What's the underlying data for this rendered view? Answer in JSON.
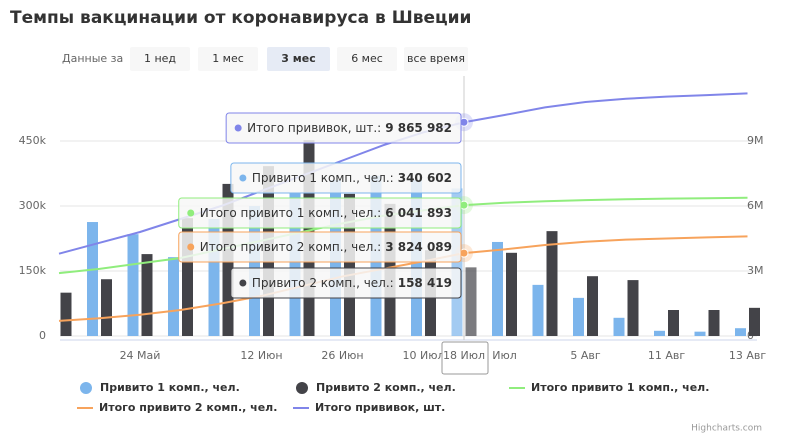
{
  "title": "Темпы вакцинации от коронавируса в Швеции",
  "range_selector": {
    "label": "Данные за",
    "buttons": [
      "1 нед",
      "1 мес",
      "3 мес",
      "6 мес",
      "все время"
    ],
    "selected": 2
  },
  "credits": "Highcharts.com",
  "chart_data": {
    "type": "combo",
    "categories": [
      null,
      null,
      "24 Май",
      null,
      null,
      "12 Июн",
      null,
      "26 Июн",
      null,
      "10 Июл",
      "18 Июл",
      "Июл",
      null,
      "5 Авг",
      null,
      "11 Авг",
      null,
      "13 Авг"
    ],
    "ylim": [
      0,
      600000
    ],
    "yticks": [
      0,
      {
        "value": 150000,
        "label": "150k"
      },
      {
        "value": 300000,
        "label": "300k"
      },
      {
        "value": 450000,
        "label": "450k"
      }
    ],
    "y2lim": [
      0,
      12000000
    ],
    "y2ticks": [
      0,
      {
        "value": 3000000,
        "label": "3M"
      },
      {
        "value": 6000000,
        "label": "6M"
      },
      {
        "value": 9000000,
        "label": "9M"
      }
    ],
    "grid": true,
    "tooltip_separator": ":",
    "series": [
      {
        "name": "Привито 1 комп., чел.",
        "type": "bar",
        "color": "#7cb5ec",
        "values": [
          null,
          263000,
          235000,
          182000,
          270000,
          300000,
          330000,
          360000,
          370000,
          360000,
          340602,
          217000,
          118000,
          88000,
          42000,
          12000,
          10000,
          18000
        ],
        "value_labels": [
          null,
          null,
          null,
          null,
          null,
          null,
          null,
          null,
          null,
          null,
          "340 602",
          null,
          null,
          null,
          null,
          null,
          null,
          null
        ]
      },
      {
        "name": "Привито 2 комп., чел.",
        "type": "bar",
        "color": "#434348",
        "values": [
          100000,
          131000,
          189000,
          272000,
          351000,
          392000,
          452000,
          328000,
          305000,
          198000,
          158419,
          192000,
          242000,
          138000,
          129000,
          60000,
          60000,
          65000
        ],
        "value_labels": [
          null,
          null,
          null,
          null,
          null,
          null,
          null,
          null,
          null,
          null,
          "158 419",
          null,
          null,
          null,
          null,
          null,
          null,
          null
        ]
      },
      {
        "name": "Итого привито 1 комп., чел.",
        "type": "line",
        "axis": "y2",
        "color": "#90ed7d",
        "values": [
          2900000,
          3100000,
          3350000,
          3600000,
          4000000,
          4400000,
          4800000,
          5200000,
          5550000,
          5800000,
          6041893,
          6150000,
          6220000,
          6270000,
          6310000,
          6340000,
          6360000,
          6380000
        ],
        "value_labels": [
          null,
          null,
          null,
          null,
          null,
          null,
          null,
          null,
          null,
          null,
          "6 041 893",
          null,
          null,
          null,
          null,
          null,
          null,
          null
        ]
      },
      {
        "name": "Итого привито 2 комп., чел.",
        "type": "line",
        "axis": "y2",
        "color": "#f7a35c",
        "values": [
          700000,
          820000,
          980000,
          1200000,
          1500000,
          1850000,
          2300000,
          2750000,
          3100000,
          3450000,
          3824089,
          4000000,
          4200000,
          4350000,
          4450000,
          4500000,
          4550000,
          4600000
        ],
        "value_labels": [
          null,
          null,
          null,
          null,
          null,
          null,
          null,
          null,
          null,
          null,
          "3 824 089",
          null,
          null,
          null,
          null,
          null,
          null,
          null
        ]
      },
      {
        "name": "Итого прививок, шт.",
        "type": "line",
        "axis": "y2",
        "color": "#8085e9",
        "values": [
          3800000,
          4300000,
          4800000,
          5400000,
          6000000,
          6700000,
          7400000,
          8100000,
          8800000,
          9400000,
          9865982,
          10200000,
          10550000,
          10800000,
          10950000,
          11050000,
          11120000,
          11200000
        ],
        "value_labels": [
          null,
          null,
          null,
          null,
          null,
          null,
          null,
          null,
          null,
          null,
          "9 865 982",
          null,
          null,
          null,
          null,
          null,
          null,
          null
        ]
      }
    ]
  }
}
